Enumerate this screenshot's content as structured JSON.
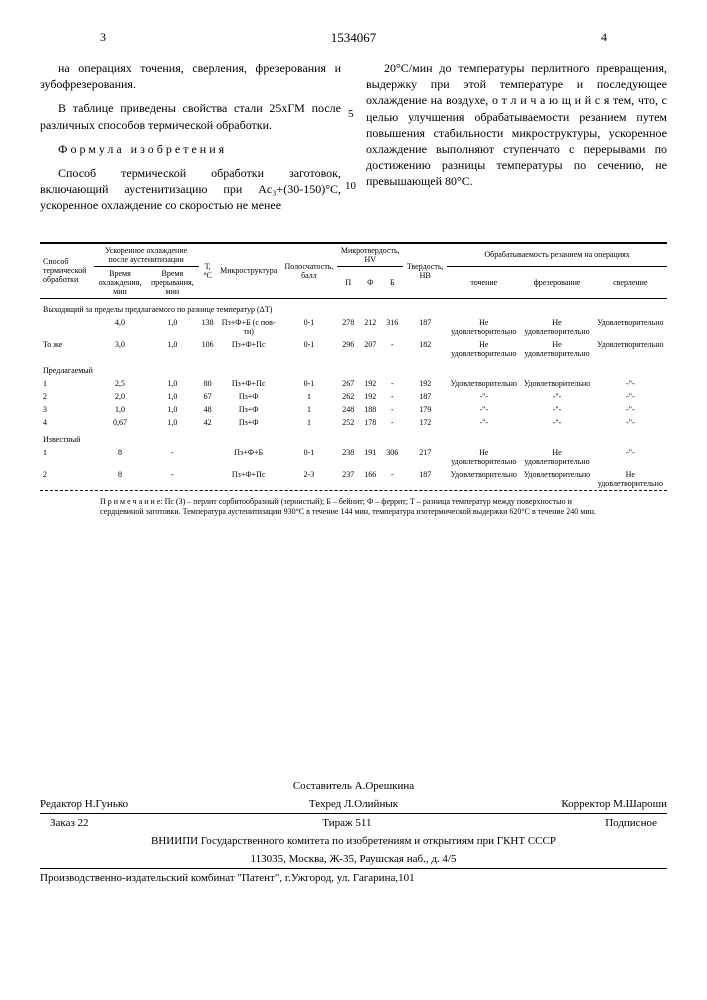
{
  "header": {
    "left_page": "3",
    "right_page": "4",
    "doc_number": "1534067",
    "margin_5": "5",
    "margin_10": "10"
  },
  "left_col": {
    "p1": "на операциях точения, сверления, фрезерования и зубофрезерования.",
    "p2": "В таблице приведены свойства стали 25хГМ после различных способов термической обработки.",
    "formula_title": "Формула изобретения",
    "p3": "Способ термической обработки заготовок, включающий аустенитизацию при Ac₃+(30-150)°С, ускоренное охлаждение со скоростью не менее"
  },
  "right_col": {
    "p1": "20°С/мин до температуры перлитного превращения, выдержку при этой температуре и последующее охлаждение на воздухе, о т л и ч а ю щ и й с я тем, что, с целью улучшения обрабатываемости резанием путем повышения стабильности микроструктуры, ускоренное охлаждение выполняют ступенчато с перерывами по достижению разницы температуры по сечению, не превышающей 80°С."
  },
  "table": {
    "headers": {
      "c1": "Способ термической обработки",
      "c2": "Ускоренное охлаждение после аустенитизации",
      "c2a": "Время охлаждения, мин",
      "c2b": "Время прерывания, мин",
      "c3": "Т,°С",
      "c4": "Микроструктура",
      "c5": "Полосчатость, балл",
      "c6": "Микротвердость, HV",
      "c6a": "П",
      "c6b": "Ф",
      "c6c": "Б",
      "c7": "Твердость, НВ",
      "c8": "Обрабатываемость резанием на операциях",
      "c8a": "точение",
      "c8b": "фрезерование",
      "c8c": "сверление"
    },
    "sec1": "Выходящий за пределы предлагаемого по разнице температур (ΔТ)",
    "sec1_label2": "То же",
    "sec2": "Предлагаемый",
    "sec3": "Известный",
    "rows": [
      {
        "label": "",
        "a": "4,0",
        "b": "1,0",
        "t": "138",
        "ms": "Пз+Ф+Б (с пов-ти)",
        "pol": "0-1",
        "p": "278",
        "f": "212",
        "bv": "316",
        "hb": "187",
        "t1": "Не удовлетворительно",
        "t2": "Не удовлетворительно",
        "t3": "Удовлетворительно"
      },
      {
        "label": "",
        "a": "3,0",
        "b": "1,0",
        "t": "106",
        "ms": "Пз+Ф+Пс",
        "pol": "0-1",
        "p": "296",
        "f": "207",
        "bv": "-",
        "hb": "182",
        "t1": "Не удовлетворительно",
        "t2": "Не удовлетворительно",
        "t3": "Удовлетворительно"
      },
      {
        "label": "1",
        "a": "2,5",
        "b": "1,0",
        "t": "80",
        "ms": "Пз+Ф+Пс",
        "pol": "0-1",
        "p": "267",
        "f": "192",
        "bv": "-",
        "hb": "192",
        "t1": "Удовлетворительно",
        "t2": "Удовлетворительно",
        "t3": "-\"-"
      },
      {
        "label": "2",
        "a": "2,0",
        "b": "1,0",
        "t": "67",
        "ms": "Пз+Ф",
        "pol": "1",
        "p": "262",
        "f": "192",
        "bv": "-",
        "hb": "187",
        "t1": "-\"-",
        "t2": "-\"-",
        "t3": "-\"-"
      },
      {
        "label": "3",
        "a": "1,0",
        "b": "1,0",
        "t": "48",
        "ms": "Пз+Ф",
        "pol": "1",
        "p": "248",
        "f": "188",
        "bv": "-",
        "hb": "179",
        "t1": "-\"-",
        "t2": "-\"-",
        "t3": "-\"-"
      },
      {
        "label": "4",
        "a": "0,67",
        "b": "1,0",
        "t": "42",
        "ms": "Пз+Ф",
        "pol": "1",
        "p": "252",
        "f": "178",
        "bv": "-",
        "hb": "172",
        "t1": "-\"-",
        "t2": "-\"-",
        "t3": "-\"-"
      },
      {
        "label": "1",
        "a": "8",
        "b": "-",
        "t": "",
        "ms": "Пз+Ф+Б",
        "pol": "0-1",
        "p": "238",
        "f": "191",
        "bv": "306",
        "hb": "217",
        "t1": "Не удовлетворительно",
        "t2": "Не удовлетворительно",
        "t3": "-\"-"
      },
      {
        "label": "2",
        "a": "8",
        "b": "-",
        "t": "",
        "ms": "Пз+Ф+Пс",
        "pol": "2-3",
        "p": "237",
        "f": "166",
        "bv": "-",
        "hb": "187",
        "t1": "Удовлетворительно",
        "t2": "Удовлетворительно",
        "t3": "Не удовлетворительно"
      }
    ],
    "note": "П р и м е ч а н и е: Пс (З) – перлит сорбитообразный (зернистый); Б – бейнит; Ф – феррит; Т – разница температур между поверхностью и сердцевиной заготовки. Температура аустенитизации 930°С в течение 144 мин, температура изотермической выдержки 620°С в течение 240 мин."
  },
  "footer": {
    "compiler": "Составитель А.Орешкина",
    "editor": "Редактор Н.Гунько",
    "techred": "Техред    Л.Олийнык",
    "corrector": "Корректор М.Шароши",
    "order": "Заказ 22",
    "tirazh": "Тираж 511",
    "sub": "Подписное",
    "org": "ВНИИПИ Государственного комитета по изобретениям и открытиям при ГКНТ СССР",
    "addr1": "113035, Москва, Ж-35, Раушская наб., д. 4/5",
    "addr2": "Производственно-издательский комбинат \"Патент\", г.Ужгород, ул. Гагарина,101"
  }
}
